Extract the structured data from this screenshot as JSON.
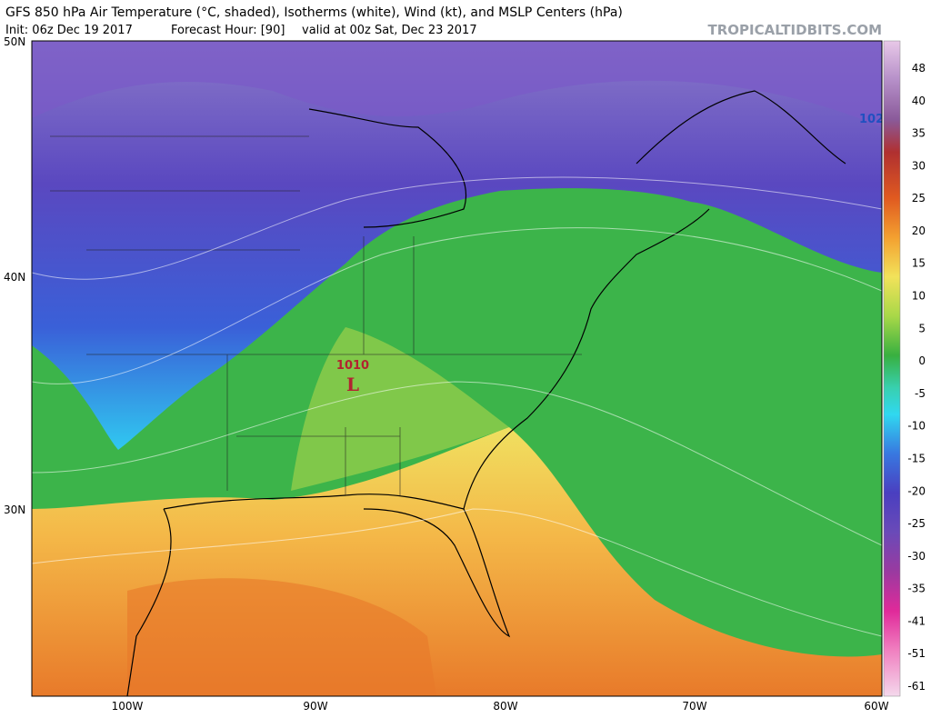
{
  "header": {
    "title": "GFS 850 hPa Air Temperature (°C, shaded), Isotherms (white), Wind (kt), and MSLP Centers (hPa)",
    "init": "Init: 06z Dec 19 2017",
    "forecast_hour": "Forecast Hour: [90]",
    "valid": "valid at 00z Sat, Dec 23 2017",
    "source": "TROPICALTIDBITS.COM"
  },
  "map": {
    "lat_labels": [
      "50N",
      "40N",
      "30N"
    ],
    "lon_labels": [
      "100W",
      "90W",
      "80W",
      "70W",
      "60W"
    ],
    "pressure_centers": [
      {
        "value": "1010",
        "symbol": "L"
      },
      {
        "value": "102"
      }
    ]
  },
  "colorbar": {
    "labels": [
      48,
      40,
      35,
      30,
      25,
      20,
      15,
      10,
      5,
      0,
      -5,
      -10,
      -15,
      -20,
      -25,
      -30,
      -35,
      -41,
      -51,
      -61
    ]
  }
}
